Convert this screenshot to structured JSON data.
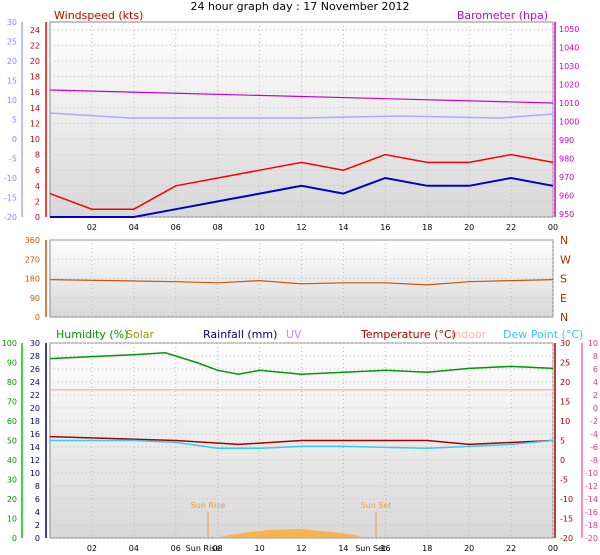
{
  "title": "24 hour graph day : 17 November 2012",
  "colors": {
    "wind": "#ff0000",
    "wind_avg": "#0000cc",
    "pressure": "#cc00cc",
    "temp_left": "#aaaaff",
    "humidity": "#009900",
    "solar": "#999900",
    "rainfall": "#000080",
    "uv": "#cc88ff",
    "temperature": "#aa0000",
    "indoor": "#ffbbaa",
    "dew_point": "#33ccee",
    "sun": "#ff9933",
    "wind_dir": "#cc5500",
    "compass": "#993300"
  },
  "labels": {
    "windspeed": "Windspeed (kts)",
    "barometer": "Barometer (hpa)",
    "humidity": "Humidity (%)",
    "solar": "Solar",
    "rainfall": "Rainfall (mm)",
    "uv": "UV",
    "temperature": "Temperature (°C)",
    "indoor": "Indoor",
    "dew_point": "Dew Point (°C)",
    "sun_rise": "Sun Rise",
    "sun_set": "Sun Set"
  },
  "chart_data": [
    {
      "type": "line",
      "panel": "wind_pressure",
      "x_ticks": [
        "02",
        "04",
        "06",
        "08",
        "10",
        "12",
        "14",
        "16",
        "18",
        "20",
        "22",
        "00"
      ],
      "y_left_ticks": [
        "0",
        "2",
        "4",
        "6",
        "8",
        "10",
        "12",
        "14",
        "16",
        "18",
        "20",
        "22",
        "24"
      ],
      "y_left_outer_ticks": [
        "-20",
        "-15",
        "-10",
        "-5",
        "0",
        "5",
        "10",
        "15",
        "20",
        "25",
        "30"
      ],
      "y_right_ticks": [
        "950",
        "960",
        "970",
        "980",
        "990",
        "1000",
        "1010",
        "1020",
        "1030",
        "1040",
        "1050"
      ],
      "series": [
        {
          "name": "Windspeed (kts)",
          "color": "#ff0000",
          "x": [
            0,
            2,
            4,
            6,
            8,
            10,
            12,
            14,
            16,
            18,
            20,
            22,
            24
          ],
          "y": [
            3,
            1,
            1,
            4,
            5,
            6,
            7,
            6,
            8,
            7,
            7,
            8,
            7
          ]
        },
        {
          "name": "Barometer (hpa)",
          "color": "#cc00cc",
          "x": [
            0,
            24
          ],
          "y": [
            1017,
            1010
          ]
        }
      ]
    },
    {
      "type": "line",
      "panel": "wind_direction",
      "y_left_ticks": [
        "0",
        "90",
        "180",
        "270",
        "360"
      ],
      "y_right_ticks": [
        "N",
        "E",
        "S",
        "W",
        "N"
      ],
      "series": [
        {
          "name": "Wind Direction",
          "x": [
            0,
            6,
            8,
            10,
            12,
            14,
            16,
            18,
            20,
            22,
            24
          ],
          "y": [
            175,
            165,
            160,
            170,
            155,
            160,
            160,
            150,
            165,
            170,
            175
          ]
        }
      ]
    },
    {
      "type": "line",
      "panel": "humidity_temperature",
      "x_ticks": [
        "02",
        "04",
        "06",
        "Sun Rise",
        "08",
        "10",
        "12",
        "14",
        "Sun Set",
        "16",
        "18",
        "20",
        "22",
        "00"
      ],
      "y_humidity_ticks": [
        "0",
        "10",
        "20",
        "30",
        "40",
        "50",
        "60",
        "70",
        "80",
        "90",
        "100"
      ],
      "y_rain_ticks": [
        "0",
        "2",
        "4",
        "6",
        "8",
        "10",
        "12",
        "14",
        "16",
        "18",
        "20",
        "22",
        "24",
        "26",
        "28",
        "30"
      ],
      "y_temp_ticks": [
        "-20",
        "-15",
        "-10",
        "-5",
        "0",
        "5",
        "10",
        "15",
        "20",
        "25",
        "30"
      ],
      "y_dew_ticks": [
        "-20",
        "-18",
        "-16",
        "-14",
        "-12",
        "-10",
        "-8",
        "-6",
        "-4",
        "-2",
        "0",
        "2",
        "4",
        "6",
        "8",
        "10"
      ],
      "series": [
        {
          "name": "Humidity (%)",
          "color": "#009900",
          "x": [
            0,
            2,
            4,
            5.5,
            7,
            8,
            9,
            10,
            12,
            14,
            16,
            18,
            20,
            22,
            24
          ],
          "y": [
            92,
            93,
            94,
            95,
            90,
            86,
            84,
            86,
            84,
            85,
            86,
            85,
            87,
            88,
            87
          ]
        },
        {
          "name": "Indoor",
          "color": "#ffbbaa",
          "x": [
            0,
            24
          ],
          "y": [
            18,
            18
          ]
        },
        {
          "name": "Temperature (°C)",
          "color": "#aa0000",
          "x": [
            0,
            6,
            9,
            12,
            18,
            20,
            24
          ],
          "y": [
            6,
            5,
            4,
            5,
            5,
            4,
            5
          ]
        },
        {
          "name": "Dew Point (°C)",
          "color": "#33ccee",
          "x": [
            0,
            4,
            6,
            8,
            10,
            12,
            14,
            18,
            20,
            22,
            24
          ],
          "y": [
            5,
            5,
            4.5,
            3,
            3,
            3.5,
            3.5,
            3,
            3.5,
            4,
            5
          ]
        }
      ]
    }
  ]
}
